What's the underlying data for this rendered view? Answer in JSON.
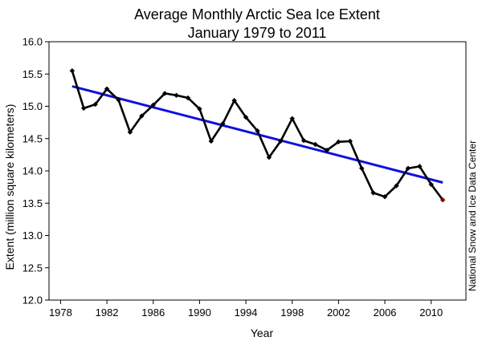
{
  "chart_data": {
    "type": "line",
    "title": "Average Monthly Arctic Sea Ice Extent",
    "subtitle": "January 1979 to 2011",
    "xlabel": "Year",
    "ylabel": "Extent (million square kilometers)",
    "source": "National Snow and Ice Data Center",
    "xlim": [
      1977,
      2013
    ],
    "ylim": [
      12.0,
      16.0
    ],
    "xticks": [
      1978,
      1982,
      1986,
      1990,
      1994,
      1998,
      2002,
      2006,
      2010
    ],
    "yticks": [
      "12.0",
      "12.5",
      "13.0",
      "13.5",
      "14.0",
      "14.5",
      "15.0",
      "15.5",
      "16.0"
    ],
    "grid": false,
    "series": [
      {
        "color": "#000000",
        "marker": "diamond",
        "x": [
          1979,
          1980,
          1981,
          1982,
          1983,
          1984,
          1985,
          1986,
          1987,
          1988,
          1989,
          1990,
          1991,
          1992,
          1993,
          1994,
          1995,
          1996,
          1997,
          1998,
          1999,
          2000,
          2001,
          2002,
          2003,
          2004,
          2005,
          2006,
          2007,
          2008,
          2009,
          2010,
          2011
        ],
        "values": [
          15.55,
          14.97,
          15.03,
          15.27,
          15.1,
          14.6,
          14.85,
          15.02,
          15.2,
          15.17,
          15.13,
          14.96,
          14.46,
          14.73,
          15.09,
          14.83,
          14.62,
          14.21,
          14.46,
          14.81,
          14.47,
          14.41,
          14.32,
          14.45,
          14.46,
          14.04,
          13.66,
          13.6,
          13.77,
          14.04,
          14.07,
          13.79,
          13.55
        ]
      },
      {
        "color": "#1010dd",
        "style": "trend",
        "x": [
          1979,
          2011
        ],
        "values": [
          15.31,
          13.82
        ]
      }
    ],
    "highlight_point": {
      "x": 2011,
      "value": 13.55,
      "color": "#8b0000"
    }
  }
}
